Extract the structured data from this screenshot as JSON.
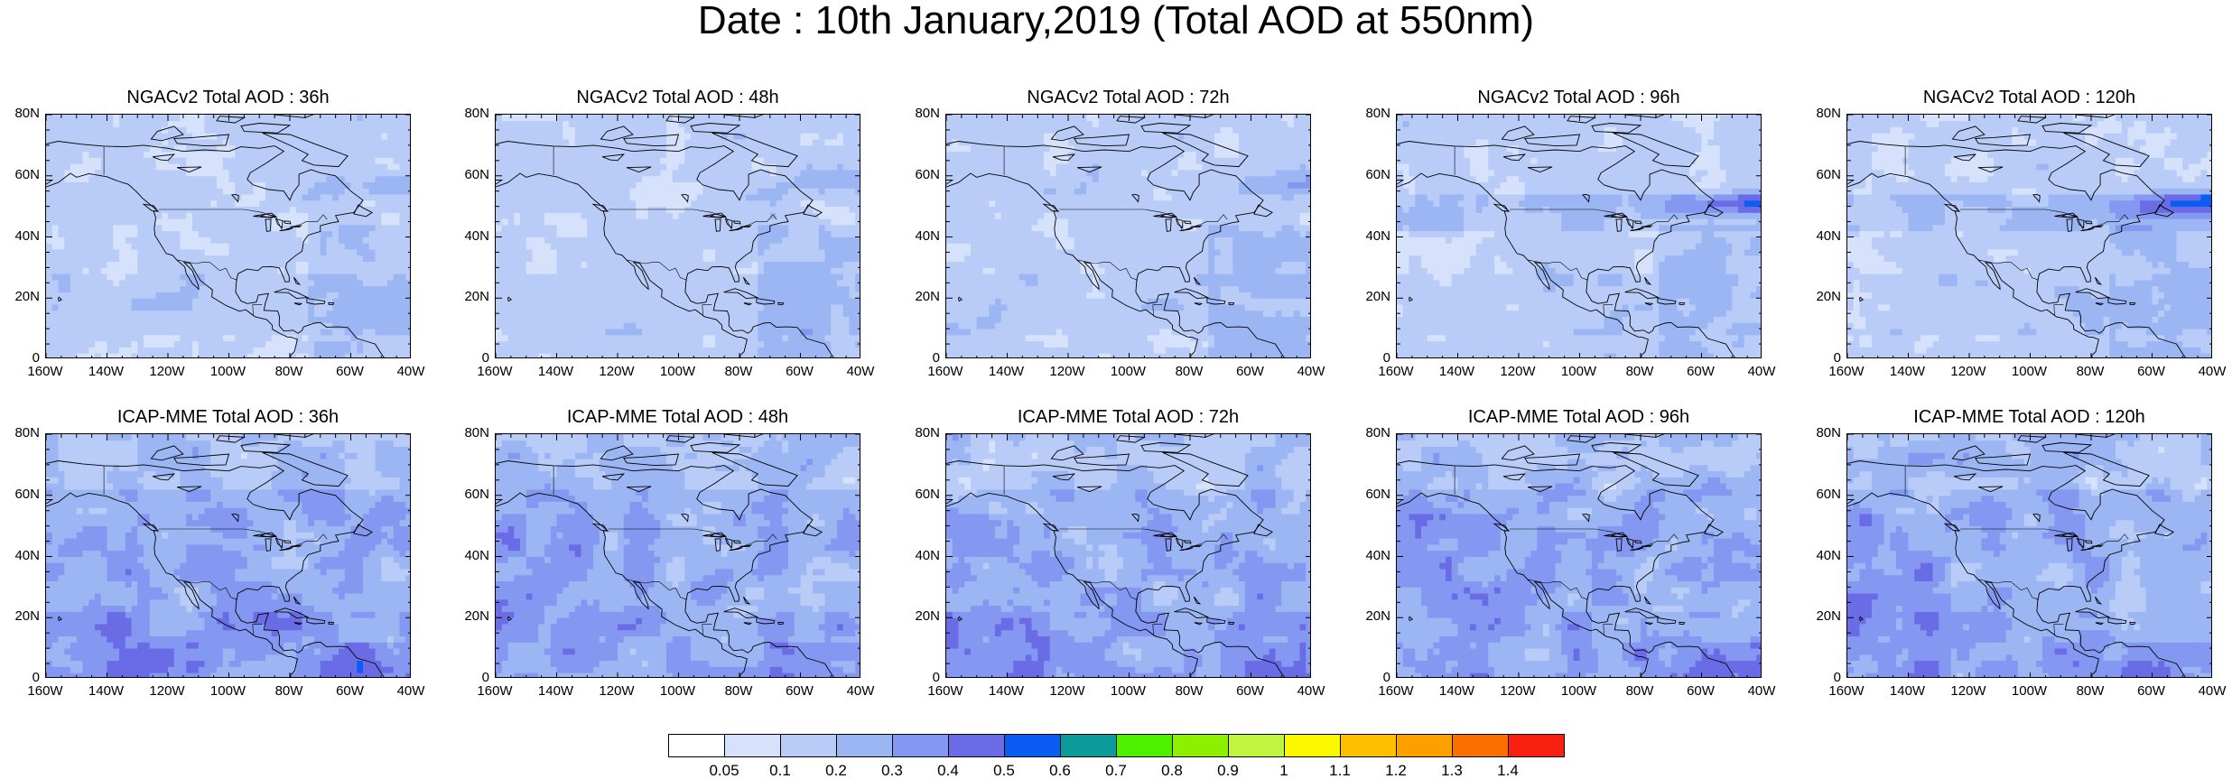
{
  "title": "Date : 10th January,2019 (Total AOD at 550nm)",
  "panels": [
    {
      "title": "NGACv2 Total AOD : 36h",
      "model": "ngac",
      "hour": 36
    },
    {
      "title": "NGACv2 Total AOD : 48h",
      "model": "ngac",
      "hour": 48
    },
    {
      "title": "NGACv2 Total AOD : 72h",
      "model": "ngac",
      "hour": 72
    },
    {
      "title": "NGACv2 Total AOD : 96h",
      "model": "ngac",
      "hour": 96
    },
    {
      "title": "NGACv2 Total AOD : 120h",
      "model": "ngac",
      "hour": 120
    },
    {
      "title": "ICAP-MME Total AOD : 36h",
      "model": "icap",
      "hour": 36
    },
    {
      "title": "ICAP-MME Total AOD : 48h",
      "model": "icap",
      "hour": 48
    },
    {
      "title": "ICAP-MME Total AOD : 72h",
      "model": "icap",
      "hour": 72
    },
    {
      "title": "ICAP-MME Total AOD : 96h",
      "model": "icap",
      "hour": 96
    },
    {
      "title": "ICAP-MME Total AOD : 120h",
      "model": "icap",
      "hour": 120
    }
  ],
  "axes": {
    "lat_ticks": [
      "0",
      "20N",
      "40N",
      "60N",
      "80N"
    ],
    "lon_ticks": [
      "160W",
      "140W",
      "120W",
      "100W",
      "80W",
      "60W",
      "40W"
    ],
    "lat_range": [
      0,
      80
    ],
    "lon_range": [
      -160,
      -40
    ]
  },
  "colorbar": {
    "labels": [
      "0.05",
      "0.1",
      "0.2",
      "0.3",
      "0.4",
      "0.5",
      "0.6",
      "0.7",
      "0.8",
      "0.9",
      "1",
      "1.1",
      "1.2",
      "1.3",
      "1.4"
    ],
    "colors": [
      "#ffffff",
      "#d6e2fb",
      "#b9ccf7",
      "#9cb6f4",
      "#8497f1",
      "#6a6ce6",
      "#0a5cf2",
      "#0c9a9a",
      "#4ef000",
      "#8cf000",
      "#bff53f",
      "#fcf800",
      "#fcc000",
      "#fca000",
      "#fa7000",
      "#f82010"
    ]
  }
}
